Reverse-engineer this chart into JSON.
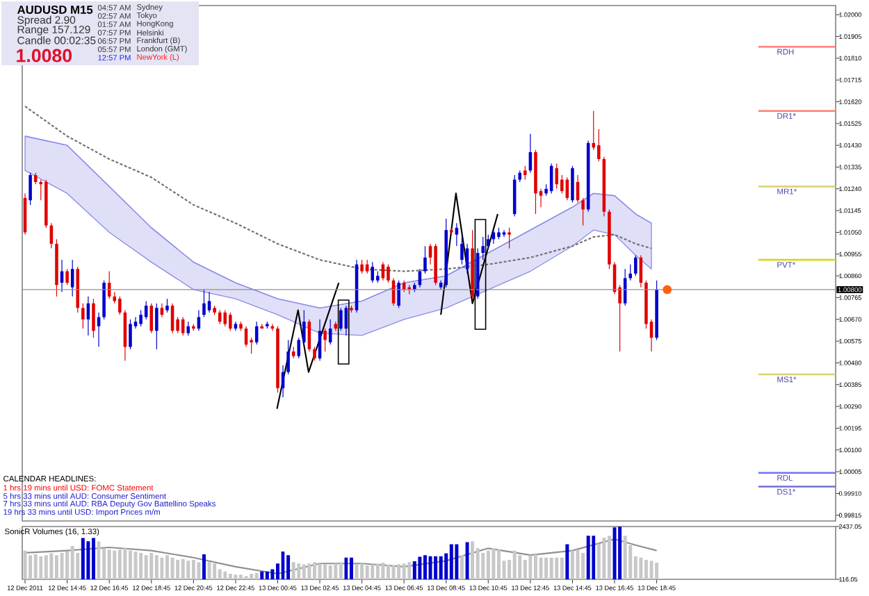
{
  "chart_data": [
    {
      "type": "candlestick",
      "title": "AUDUSD  M15",
      "x": [
        "2011-12-12T12:45",
        "2011-12-12T13:00",
        "2011-12-12T13:15",
        "2011-12-12T13:30",
        "2011-12-12T13:45",
        "2011-12-12T14:00",
        "2011-12-12T14:15",
        "2011-12-12T14:30",
        "2011-12-12T14:45",
        "2011-12-12T15:00",
        "2011-12-12T15:15",
        "2011-12-12T15:30",
        "2011-12-12T15:45",
        "2011-12-12T16:00",
        "2011-12-12T16:15",
        "2011-12-12T16:30",
        "2011-12-12T16:45",
        "2011-12-12T17:00",
        "2011-12-12T17:15",
        "2011-12-12T17:30",
        "2011-12-12T17:45",
        "2011-12-12T18:00",
        "2011-12-12T18:15",
        "2011-12-12T18:30",
        "2011-12-12T18:45",
        "2011-12-12T19:00",
        "2011-12-12T19:15",
        "2011-12-12T19:30",
        "2011-12-12T19:45",
        "2011-12-12T20:00",
        "2011-12-12T20:15",
        "2011-12-12T20:30",
        "2011-12-12T20:45",
        "2011-12-12T21:00",
        "2011-12-12T21:15",
        "2011-12-12T21:30",
        "2011-12-12T21:45",
        "2011-12-12T22:00",
        "2011-12-12T22:15",
        "2011-12-12T22:30",
        "2011-12-12T22:45",
        "2011-12-12T23:00",
        "2011-12-12T23:15",
        "2011-12-12T23:30",
        "2011-12-12T23:45",
        "2011-12-13T00:00",
        "2011-12-13T00:15",
        "2011-12-13T00:30",
        "2011-12-13T00:45",
        "2011-12-13T01:00",
        "2011-12-13T01:15",
        "2011-12-13T01:30",
        "2011-12-13T01:45",
        "2011-12-13T02:00",
        "2011-12-13T02:15",
        "2011-12-13T02:30",
        "2011-12-13T02:45",
        "2011-12-13T03:00",
        "2011-12-13T03:15",
        "2011-12-13T03:30",
        "2011-12-13T03:45",
        "2011-12-13T04:00",
        "2011-12-13T04:15",
        "2011-12-13T04:30",
        "2011-12-13T04:45",
        "2011-12-13T05:00",
        "2011-12-13T05:15",
        "2011-12-13T05:30",
        "2011-12-13T05:45",
        "2011-12-13T06:00",
        "2011-12-13T06:15",
        "2011-12-13T06:30",
        "2011-12-13T06:45",
        "2011-12-13T07:00",
        "2011-12-13T07:15",
        "2011-12-13T07:30",
        "2011-12-13T07:45",
        "2011-12-13T08:00",
        "2011-12-13T08:15",
        "2011-12-13T08:30",
        "2011-12-13T08:45",
        "2011-12-13T09:00",
        "2011-12-13T09:15",
        "2011-12-13T09:30",
        "2011-12-13T09:45",
        "2011-12-13T10:00",
        "2011-12-13T10:15",
        "2011-12-13T10:30",
        "2011-12-13T10:45",
        "2011-12-13T11:00",
        "2011-12-13T11:15",
        "2011-12-13T11:30",
        "2011-12-13T11:45",
        "2011-12-13T12:00",
        "2011-12-13T12:15",
        "2011-12-13T12:30",
        "2011-12-13T12:45",
        "2011-12-13T13:00",
        "2011-12-13T13:15",
        "2011-12-13T13:30",
        "2011-12-13T13:45",
        "2011-12-13T14:00",
        "2011-12-13T14:15",
        "2011-12-13T14:30",
        "2011-12-13T14:45",
        "2011-12-13T15:00",
        "2011-12-13T15:15",
        "2011-12-13T15:30",
        "2011-12-13T15:45",
        "2011-12-13T16:00",
        "2011-12-13T16:15",
        "2011-12-13T16:30",
        "2011-12-13T16:45",
        "2011-12-13T17:00",
        "2011-12-13T17:15",
        "2011-12-13T17:30",
        "2011-12-13T17:45",
        "2011-12-13T18:00",
        "2011-12-13T18:15",
        "2011-12-13T18:30",
        "2011-12-13T18:45"
      ],
      "ohlc": [
        [
          1.012,
          1.0122,
          1.0104,
          1.0105
        ],
        [
          1.0119,
          1.0131,
          1.0117,
          1.013
        ],
        [
          1.013,
          1.0131,
          1.0126,
          1.0127
        ],
        [
          1.0127,
          1.0128,
          1.0119,
          1.0126
        ],
        [
          1.0127,
          1.0128,
          1.0107,
          1.0108
        ],
        [
          1.0108,
          1.0109,
          1.0098,
          1.01
        ],
        [
          1.01,
          1.0102,
          1.0077,
          1.0082
        ],
        [
          1.0083,
          1.0093,
          1.0079,
          1.0088
        ],
        [
          1.0088,
          1.0089,
          1.0082,
          1.0083
        ],
        [
          1.0081,
          1.0093,
          1.0077,
          1.0089
        ],
        [
          1.0089,
          1.009,
          1.007,
          1.0072
        ],
        [
          1.0072,
          1.0074,
          1.0063,
          1.0067
        ],
        [
          1.0067,
          1.0077,
          1.006,
          1.0074
        ],
        [
          1.0074,
          1.0076,
          1.0059,
          1.0062
        ],
        [
          1.0064,
          1.007,
          1.0055,
          1.0068
        ],
        [
          1.0068,
          1.0084,
          1.0067,
          1.0083
        ],
        [
          1.0083,
          1.0088,
          1.0076,
          1.0077
        ],
        [
          1.0077,
          1.0079,
          1.0074,
          1.0075
        ],
        [
          1.0076,
          1.0077,
          1.0069,
          1.007
        ],
        [
          1.007,
          1.0071,
          1.0049,
          1.0055
        ],
        [
          1.0055,
          1.0067,
          1.0054,
          1.0065
        ],
        [
          1.0064,
          1.0068,
          1.0063,
          1.0066
        ],
        [
          1.0065,
          1.0071,
          1.0064,
          1.0069
        ],
        [
          1.0068,
          1.0075,
          1.0067,
          1.0073
        ],
        [
          1.0073,
          1.0074,
          1.0061,
          1.0062
        ],
        [
          1.0062,
          1.0074,
          1.0054,
          1.0072
        ],
        [
          1.0072,
          1.0074,
          1.0068,
          1.0069
        ],
        [
          1.0071,
          1.0076,
          1.007,
          1.0073
        ],
        [
          1.0073,
          1.0074,
          1.0061,
          1.0062
        ],
        [
          1.0067,
          1.0068,
          1.0061,
          1.0062
        ],
        [
          1.0067,
          1.0068,
          1.006,
          1.0061
        ],
        [
          1.0061,
          1.0066,
          1.006,
          1.0064
        ],
        [
          1.0064,
          1.0065,
          1.0062,
          1.0063
        ],
        [
          1.0063,
          1.0071,
          1.0062,
          1.0068
        ],
        [
          1.0069,
          1.008,
          1.0068,
          1.0074
        ],
        [
          1.0071,
          1.0079,
          1.007,
          1.0075
        ],
        [
          1.0072,
          1.0073,
          1.0069,
          1.007
        ],
        [
          1.007,
          1.0071,
          1.0065,
          1.0066
        ],
        [
          1.007,
          1.0071,
          1.0064,
          1.0065
        ],
        [
          1.0069,
          1.007,
          1.0062,
          1.0063
        ],
        [
          1.0063,
          1.0066,
          1.0062,
          1.0065
        ],
        [
          1.0065,
          1.0066,
          1.0062,
          1.0063
        ],
        [
          1.0063,
          1.0064,
          1.0055,
          1.0056
        ],
        [
          1.0058,
          1.0059,
          1.0052,
          1.0057
        ],
        [
          1.0057,
          1.0066,
          1.0056,
          1.0064
        ],
        [
          1.0064,
          1.0065,
          1.0063,
          1.0063
        ],
        [
          1.0064,
          1.0066,
          1.0063,
          1.0065
        ],
        [
          1.0064,
          1.0065,
          1.0062,
          1.0063
        ],
        [
          1.0063,
          1.0064,
          1.0035,
          1.0037
        ],
        [
          1.0037,
          1.0047,
          1.0033,
          1.0044
        ],
        [
          1.0044,
          1.0058,
          1.0043,
          1.0053
        ],
        [
          1.0053,
          1.0055,
          1.005,
          1.0051
        ],
        [
          1.0051,
          1.0059,
          1.005,
          1.0058
        ],
        [
          1.0057,
          1.0071,
          1.0056,
          1.0066
        ],
        [
          1.0066,
          1.0067,
          1.0053,
          1.0054
        ],
        [
          1.0054,
          1.0055,
          1.0049,
          1.005
        ],
        [
          1.005,
          1.0067,
          1.0049,
          1.0062
        ],
        [
          1.0062,
          1.0063,
          1.0053,
          1.0058
        ],
        [
          1.0057,
          1.0067,
          1.0056,
          1.0063
        ],
        [
          1.0065,
          1.0066,
          1.0062,
          1.0063
        ],
        [
          1.0063,
          1.0072,
          1.0062,
          1.0071
        ],
        [
          1.0063,
          1.0073,
          1.006,
          1.0072
        ],
        [
          1.0072,
          1.0073,
          1.007,
          1.0071
        ],
        [
          1.0071,
          1.0093,
          1.007,
          1.0091
        ],
        [
          1.0091,
          1.0093,
          1.0087,
          1.0088
        ],
        [
          1.0091,
          1.0093,
          1.0087,
          1.0088
        ],
        [
          1.0084,
          1.0092,
          1.0083,
          1.009
        ],
        [
          1.0084,
          1.0088,
          1.0083,
          1.0086
        ],
        [
          1.0091,
          1.0092,
          1.0084,
          1.0085
        ],
        [
          1.009,
          1.0091,
          1.0083,
          1.0084
        ],
        [
          1.0084,
          1.0085,
          1.0073,
          1.0074
        ],
        [
          1.0073,
          1.0084,
          1.0072,
          1.0083
        ],
        [
          1.0083,
          1.0084,
          1.0079,
          1.008
        ],
        [
          1.0081,
          1.0082,
          1.0078,
          1.008
        ],
        [
          1.008,
          1.0083,
          1.0079,
          1.0082
        ],
        [
          1.0082,
          1.0089,
          1.0081,
          1.0088
        ],
        [
          1.0088,
          1.0099,
          1.0087,
          1.0094
        ],
        [
          1.0099,
          1.01,
          1.0091,
          1.0094
        ],
        [
          1.0099,
          1.01,
          1.0082,
          1.0083
        ],
        [
          1.0081,
          1.0084,
          1.008,
          1.0083
        ],
        [
          1.0082,
          1.0111,
          1.0081,
          1.0106
        ],
        [
          1.0106,
          1.0107,
          1.0104,
          1.0105
        ],
        [
          1.0104,
          1.0109,
          1.0099,
          1.0107
        ],
        [
          1.0093,
          1.0104,
          1.0091,
          1.01
        ],
        [
          1.0089,
          1.01,
          1.0087,
          1.0098
        ],
        [
          1.0098,
          1.0106,
          1.0076,
          1.0077
        ],
        [
          1.0077,
          1.0098,
          1.0076,
          1.0096
        ],
        [
          1.0096,
          1.0103,
          1.0093,
          1.0099
        ],
        [
          1.0099,
          1.0104,
          1.0098,
          1.0102
        ],
        [
          1.0102,
          1.0106,
          1.01,
          1.0105
        ],
        [
          1.0103,
          1.0107,
          1.0102,
          1.0105
        ],
        [
          1.0104,
          1.0106,
          1.0103,
          1.0105
        ],
        [
          1.0105,
          1.0107,
          1.0098,
          1.0104
        ],
        [
          1.0113,
          1.013,
          1.0112,
          1.0128
        ],
        [
          1.0128,
          1.0132,
          1.0127,
          1.0131
        ],
        [
          1.0132,
          1.0134,
          1.0128,
          1.013
        ],
        [
          1.0132,
          1.0148,
          1.0131,
          1.014
        ],
        [
          1.014,
          1.0141,
          1.0113,
          1.0122
        ],
        [
          1.0123,
          1.0124,
          1.0116,
          1.0121
        ],
        [
          1.0122,
          1.0126,
          1.0121,
          1.0124
        ],
        [
          1.0123,
          1.0135,
          1.0122,
          1.0134
        ],
        [
          1.0133,
          1.0135,
          1.0124,
          1.0126
        ],
        [
          1.0128,
          1.013,
          1.0122,
          1.0123
        ],
        [
          1.0128,
          1.0129,
          1.0119,
          1.012
        ],
        [
          1.0119,
          1.0134,
          1.0118,
          1.0133
        ],
        [
          1.0127,
          1.013,
          1.0118,
          1.0119
        ],
        [
          1.0119,
          1.012,
          1.0108,
          1.0115
        ],
        [
          1.0115,
          1.0145,
          1.0114,
          1.0144
        ],
        [
          1.0144,
          1.0158,
          1.0141,
          1.0142
        ],
        [
          1.0143,
          1.015,
          1.0136,
          1.0137
        ],
        [
          1.0137,
          1.0138,
          1.0112,
          1.0114
        ],
        [
          1.0114,
          1.0115,
          1.0089,
          1.0091
        ],
        [
          1.0091,
          1.0092,
          1.0078,
          1.0079
        ],
        [
          1.0081,
          1.0082,
          1.0053,
          1.0074
        ],
        [
          1.0074,
          1.0089,
          1.0073,
          1.0085
        ],
        [
          1.0085,
          1.0091,
          1.0084,
          1.0087
        ],
        [
          1.0087,
          1.0095,
          1.0086,
          1.0094
        ],
        [
          1.0094,
          1.0095,
          1.0081,
          1.0083
        ],
        [
          1.0083,
          1.0084,
          1.0063,
          1.0065
        ],
        [
          1.0066,
          1.0067,
          1.0053,
          1.0059
        ],
        [
          1.0059,
          1.0084,
          1.0058,
          1.008
        ]
      ],
      "colors": [
        "#e00000",
        "#0000cc",
        "#e00000",
        "#e00000",
        "#e00000",
        "#e00000",
        "#e00000",
        "#0000cc",
        "#e00000",
        "#0000cc",
        "#e00000",
        "#e00000",
        "#0000cc",
        "#e00000",
        "#0000cc",
        "#0000cc",
        "#e00000",
        "#e00000",
        "#e00000",
        "#e00000",
        "#0000cc",
        "#0000cc",
        "#0000cc",
        "#0000cc",
        "#e00000",
        "#0000cc",
        "#e00000",
        "#0000cc",
        "#e00000",
        "#e00000",
        "#e00000",
        "#0000cc",
        "#e00000",
        "#0000cc",
        "#0000cc",
        "#0000cc",
        "#e00000",
        "#e00000",
        "#e00000",
        "#e00000",
        "#0000cc",
        "#e00000",
        "#e00000",
        "#e00000",
        "#0000cc",
        "#e00000",
        "#0000cc",
        "#e00000",
        "#e00000",
        "#0000cc",
        "#0000cc",
        "#e00000",
        "#0000cc",
        "#0000cc",
        "#e00000",
        "#e00000",
        "#0000cc",
        "#e00000",
        "#0000cc",
        "#e00000",
        "#0000cc",
        "#0000cc",
        "#e00000",
        "#0000cc",
        "#e00000",
        "#e00000",
        "#0000cc",
        "#0000cc",
        "#e00000",
        "#e00000",
        "#e00000",
        "#0000cc",
        "#e00000",
        "#e00000",
        "#0000cc",
        "#0000cc",
        "#0000cc",
        "#e00000",
        "#e00000",
        "#0000cc",
        "#0000cc",
        "#e00000",
        "#0000cc",
        "#0000cc",
        "#0000cc",
        "#e00000",
        "#0000cc",
        "#0000cc",
        "#0000cc",
        "#0000cc",
        "#0000cc",
        "#0000cc",
        "#e00000",
        "#0000cc",
        "#0000cc",
        "#e00000",
        "#0000cc",
        "#e00000",
        "#e00000",
        "#0000cc",
        "#0000cc",
        "#e00000",
        "#e00000",
        "#e00000",
        "#0000cc",
        "#e00000",
        "#e00000",
        "#0000cc",
        "#e00000",
        "#e00000",
        "#e00000",
        "#e00000",
        "#e00000",
        "#e00000",
        "#0000cc",
        "#0000cc",
        "#0000cc",
        "#e00000",
        "#e00000",
        "#e00000",
        "#0000cc"
      ],
      "xlim": [
        "2011-12-12T12:37",
        "2011-12-14T03:15"
      ],
      "ylim": [
        0.9979,
        1.0204
      ],
      "yticks": [
        {
          "value": 1.02,
          "label": "1.02000"
        },
        {
          "value": 1.01905,
          "label": "1.01905"
        },
        {
          "value": 1.0181,
          "label": "1.01810"
        },
        {
          "value": 1.01715,
          "label": "1.01715"
        },
        {
          "value": 1.0162,
          "label": "1.01620"
        },
        {
          "value": 1.01525,
          "label": "1.01525"
        },
        {
          "value": 1.0143,
          "label": "1.01430"
        },
        {
          "value": 1.01335,
          "label": "1.01335"
        },
        {
          "value": 1.0124,
          "label": "1.01240"
        },
        {
          "value": 1.01145,
          "label": "1.01145"
        },
        {
          "value": 1.0105,
          "label": "1.01050"
        },
        {
          "value": 1.00955,
          "label": "1.00955"
        },
        {
          "value": 1.0086,
          "label": "1.00860"
        },
        {
          "value": 1.00765,
          "label": "1.00765"
        },
        {
          "value": 1.0067,
          "label": "1.00670"
        },
        {
          "value": 1.00575,
          "label": "1.00575"
        },
        {
          "value": 1.0048,
          "label": "1.00480"
        },
        {
          "value": 1.00385,
          "label": "1.00385"
        },
        {
          "value": 1.0029,
          "label": "1.00290"
        },
        {
          "value": 1.00195,
          "label": "1.00195"
        },
        {
          "value": 1.001,
          "label": "1.00100"
        },
        {
          "value": 1.00005,
          "label": "1.00005"
        },
        {
          "value": 0.9991,
          "label": "0.99910"
        },
        {
          "value": 0.99815,
          "label": "0.99815"
        }
      ],
      "tick_labels": "y",
      "series": [
        {
          "type": "line",
          "color": "#8c8ce6",
          "x": [
            "2011-12-12T12:45",
            "2011-12-12T14:45",
            "2011-12-12T16:45",
            "2011-12-12T18:45",
            "2011-12-12T20:45",
            "2011-12-12T22:45",
            "2011-12-13T00:45",
            "2011-12-13T02:45",
            "2011-12-13T04:45",
            "2011-12-13T06:45",
            "2011-12-13T08:45",
            "2011-12-13T12:45",
            "2011-12-13T14:45",
            "2011-12-13T15:45",
            "2011-12-13T16:45",
            "2011-12-13T17:45",
            "2011-12-13T18:30"
          ],
          "values": [
            1.0147,
            1.0143,
            1.0125,
            1.0107,
            1.0092,
            1.0083,
            1.0076,
            1.0072,
            1.0075,
            1.0083,
            1.0086,
            1.0106,
            1.0116,
            1.0122,
            1.0121,
            1.0113,
            1.0109
          ],
          "upper": [
            1.0147,
            1.0143,
            1.0125,
            1.0107,
            1.0092,
            1.0083,
            1.0076,
            1.0072,
            1.0075,
            1.0083,
            1.0086,
            1.0106,
            1.0116,
            1.0122,
            1.0121,
            1.0113,
            1.0109
          ],
          "lower": [
            1.0132,
            1.0122,
            1.0105,
            1.0092,
            1.008,
            1.0076,
            1.0069,
            1.0061,
            1.006,
            1.0067,
            1.0072,
            1.0088,
            1.0099,
            1.0106,
            1.0104,
            1.0095,
            1.0089
          ]
        },
        {
          "type": "line",
          "color": "#707070",
          "line_style": "dashed",
          "x": [
            "2011-12-12T12:45",
            "2011-12-12T14:45",
            "2011-12-12T16:45",
            "2011-12-12T18:45",
            "2011-12-12T20:45",
            "2011-12-12T22:45",
            "2011-12-13T00:45",
            "2011-12-13T02:45",
            "2011-12-13T04:45",
            "2011-12-13T06:45",
            "2011-12-13T08:45",
            "2011-12-13T10:45",
            "2011-12-13T12:45",
            "2011-12-13T14:45",
            "2011-12-13T15:45",
            "2011-12-13T16:45",
            "2011-12-13T17:45",
            "2011-12-13T18:30"
          ],
          "values": [
            1.016,
            1.0147,
            1.0137,
            1.0129,
            1.0117,
            1.0109,
            1.01,
            1.0093,
            1.0089,
            1.0088,
            1.0089,
            1.0091,
            1.0094,
            1.0099,
            1.0103,
            1.0104,
            1.01,
            1.0098
          ]
        },
        {
          "type": "line",
          "color": "#000000",
          "x": [
            "2011-12-13T00:43",
            "2011-12-13T01:43",
            "2011-12-13T02:13",
            "2011-12-13T03:39"
          ],
          "values": [
            1.0028,
            1.0071,
            1.0044,
            1.0083
          ]
        },
        {
          "type": "line",
          "color": "#000000",
          "x": [
            "2011-12-13T08:30",
            "2011-12-13T09:13",
            "2011-12-13T10:00",
            "2011-12-13T11:12"
          ],
          "values": [
            1.0069,
            1.0122,
            1.0074,
            1.0113
          ]
        },
        {
          "type": "scatter",
          "color": "#ff6010",
          "marker": "circle",
          "x": [
            "2011-12-13T19:15"
          ],
          "values": [
            1.008
          ]
        }
      ],
      "ref_lines": [
        {
          "axis": "y",
          "value": 1.0186,
          "label": "RDH",
          "color": "#ff7070"
        },
        {
          "axis": "y",
          "value": 1.0158,
          "label": "DR1*",
          "color": "#ff8070"
        },
        {
          "axis": "y",
          "value": 1.0125,
          "label": "MR1*",
          "color": "#d8d070"
        },
        {
          "axis": "y",
          "value": 1.0093,
          "label": "PVT*",
          "color": "#d8d800"
        },
        {
          "axis": "y",
          "value": 1.0043,
          "label": "MS1*",
          "color": "#d8d070"
        },
        {
          "axis": "y",
          "value": 1.0,
          "label": "RDL",
          "color": "#7070ff"
        },
        {
          "axis": "y",
          "value": 0.9994,
          "label": "DS1*",
          "color": "#7070d0"
        },
        {
          "axis": "y",
          "value": 1.008,
          "label": "1.00800",
          "color": "#909090"
        }
      ],
      "annotations": [
        "Spread  2.90",
        "Range  157.129",
        "Candle  00:02:35",
        "1.0080",
        "04:57 AM",
        "02:57 AM",
        "01:57 AM",
        "07:57 PM",
        "06:57 PM",
        "05:57 PM",
        "12:57 PM",
        "Sydney",
        "Tokyo",
        "HongKong",
        "Helsinki",
        "Frankfurt (B)",
        "London (GMT)",
        "NewYork (L)",
        "CALENDAR HEADLINES:",
        "1 hrs 19 mins until USD: FOMC Statement",
        "5 hrs 33 mins until AUD: Consumer Sentiment",
        "7 hrs 33 mins until AUD: RBA Deputy Gov Battellino Speaks",
        "19 hrs 33 mins until USD: Import Prices m/m"
      ]
    },
    {
      "type": "bar",
      "title": "SonicR Volumes (16, 1.33)",
      "x": [
        "2011-12-12T12:45",
        "2011-12-12T13:00",
        "2011-12-12T13:15",
        "2011-12-12T13:30",
        "2011-12-12T13:45",
        "2011-12-12T14:00",
        "2011-12-12T14:15",
        "2011-12-12T14:30",
        "2011-12-12T14:45",
        "2011-12-12T15:00",
        "2011-12-12T15:15",
        "2011-12-12T15:30",
        "2011-12-12T15:45",
        "2011-12-12T16:00",
        "2011-12-12T16:15",
        "2011-12-12T16:30",
        "2011-12-12T16:45",
        "2011-12-12T17:00",
        "2011-12-12T17:15",
        "2011-12-12T17:30",
        "2011-12-12T17:45",
        "2011-12-12T18:00",
        "2011-12-12T18:15",
        "2011-12-12T18:30",
        "2011-12-12T18:45",
        "2011-12-12T19:00",
        "2011-12-12T19:15",
        "2011-12-12T19:30",
        "2011-12-12T19:45",
        "2011-12-12T20:00",
        "2011-12-12T20:15",
        "2011-12-12T20:30",
        "2011-12-12T20:45",
        "2011-12-12T21:00",
        "2011-12-12T21:15",
        "2011-12-12T21:30",
        "2011-12-12T21:45",
        "2011-12-12T22:00",
        "2011-12-12T22:15",
        "2011-12-12T22:30",
        "2011-12-12T22:45",
        "2011-12-12T23:00",
        "2011-12-12T23:15",
        "2011-12-12T23:30",
        "2011-12-12T23:45",
        "2011-12-13T00:00",
        "2011-12-13T00:15",
        "2011-12-13T00:30",
        "2011-12-13T00:45",
        "2011-12-13T01:00",
        "2011-12-13T01:15",
        "2011-12-13T01:30",
        "2011-12-13T01:45",
        "2011-12-13T02:00",
        "2011-12-13T02:15",
        "2011-12-13T02:30",
        "2011-12-13T02:45",
        "2011-12-13T03:00",
        "2011-12-13T03:15",
        "2011-12-13T03:30",
        "2011-12-13T03:45",
        "2011-12-13T04:00",
        "2011-12-13T04:15",
        "2011-12-13T04:30",
        "2011-12-13T04:45",
        "2011-12-13T05:00",
        "2011-12-13T05:15",
        "2011-12-13T05:30",
        "2011-12-13T05:45",
        "2011-12-13T06:00",
        "2011-12-13T06:15",
        "2011-12-13T06:30",
        "2011-12-13T06:45",
        "2011-12-13T07:00",
        "2011-12-13T07:15",
        "2011-12-13T07:30",
        "2011-12-13T07:45",
        "2011-12-13T08:00",
        "2011-12-13T08:15",
        "2011-12-13T08:30",
        "2011-12-13T08:45",
        "2011-12-13T09:00",
        "2011-12-13T09:15",
        "2011-12-13T09:30",
        "2011-12-13T09:45",
        "2011-12-13T10:00",
        "2011-12-13T10:15",
        "2011-12-13T10:30",
        "2011-12-13T10:45",
        "2011-12-13T11:00",
        "2011-12-13T11:15",
        "2011-12-13T11:30",
        "2011-12-13T11:45",
        "2011-12-13T12:00",
        "2011-12-13T12:15",
        "2011-12-13T12:30",
        "2011-12-13T12:45",
        "2011-12-13T13:00",
        "2011-12-13T13:15",
        "2011-12-13T13:30",
        "2011-12-13T13:45",
        "2011-12-13T14:00",
        "2011-12-13T14:15",
        "2011-12-13T14:30",
        "2011-12-13T14:45",
        "2011-12-13T15:00",
        "2011-12-13T15:15",
        "2011-12-13T15:30",
        "2011-12-13T15:45",
        "2011-12-13T16:00",
        "2011-12-13T16:15",
        "2011-12-13T16:30",
        "2011-12-13T16:45",
        "2011-12-13T17:00",
        "2011-12-13T17:15",
        "2011-12-13T17:30",
        "2011-12-13T17:45",
        "2011-12-13T18:00",
        "2011-12-13T18:15",
        "2011-12-13T18:30",
        "2011-12-13T18:45"
      ],
      "values": [
        1380,
        1180,
        1220,
        1130,
        1180,
        1260,
        1180,
        1280,
        1340,
        1580,
        1280,
        1930,
        1790,
        1930,
        1790,
        1480,
        1420,
        1380,
        1420,
        1480,
        1380,
        1340,
        1280,
        1180,
        1280,
        1180,
        1070,
        1180,
        1070,
        970,
        1010,
        930,
        970,
        870,
        1220,
        870,
        810,
        560,
        460,
        360,
        320,
        320,
        260,
        360,
        400,
        460,
        460,
        560,
        810,
        1340,
        1180,
        870,
        810,
        770,
        810,
        870,
        810,
        770,
        730,
        810,
        870,
        1070,
        1070,
        770,
        810,
        730,
        770,
        810,
        850,
        770,
        730,
        770,
        810,
        870,
        910,
        1110,
        1180,
        1130,
        1130,
        1130,
        1260,
        1660,
        1660,
        1180,
        1750,
        1790,
        1480,
        1280,
        1380,
        1480,
        1420,
        930,
        970,
        1380,
        1180,
        970,
        1180,
        1220,
        1070,
        1070,
        1070,
        1070,
        1070,
        1660,
        1380,
        1420,
        1280,
        2030,
        2030,
        1680,
        1950,
        2030,
        2400,
        2430,
        2030,
        1620,
        1130,
        1070,
        970,
        930,
        850
      ],
      "colors": [
        "#c8c8c8",
        "#c8c8c8",
        "#c8c8c8",
        "#c8c8c8",
        "#c8c8c8",
        "#c8c8c8",
        "#c8c8c8",
        "#c8c8c8",
        "#c8c8c8",
        "#c8c8c8",
        "#c8c8c8",
        "#0000cc",
        "#0000cc",
        "#0000cc",
        "#c8c8c8",
        "#c8c8c8",
        "#c8c8c8",
        "#c8c8c8",
        "#c8c8c8",
        "#c8c8c8",
        "#c8c8c8",
        "#c8c8c8",
        "#c8c8c8",
        "#c8c8c8",
        "#c8c8c8",
        "#c8c8c8",
        "#c8c8c8",
        "#c8c8c8",
        "#c8c8c8",
        "#c8c8c8",
        "#c8c8c8",
        "#c8c8c8",
        "#c8c8c8",
        "#c8c8c8",
        "#0000cc",
        "#c8c8c8",
        "#c8c8c8",
        "#c8c8c8",
        "#c8c8c8",
        "#c8c8c8",
        "#c8c8c8",
        "#c8c8c8",
        "#c8c8c8",
        "#c8c8c8",
        "#c8c8c8",
        "#0000cc",
        "#0000cc",
        "#0000cc",
        "#0000cc",
        "#0000cc",
        "#0000cc",
        "#c8c8c8",
        "#c8c8c8",
        "#c8c8c8",
        "#c8c8c8",
        "#c8c8c8",
        "#c8c8c8",
        "#c8c8c8",
        "#c8c8c8",
        "#c8c8c8",
        "#c8c8c8",
        "#0000cc",
        "#0000cc",
        "#c8c8c8",
        "#c8c8c8",
        "#c8c8c8",
        "#c8c8c8",
        "#c8c8c8",
        "#c8c8c8",
        "#c8c8c8",
        "#c8c8c8",
        "#c8c8c8",
        "#c8c8c8",
        "#c8c8c8",
        "#0000cc",
        "#0000cc",
        "#0000cc",
        "#0000cc",
        "#0000cc",
        "#0000cc",
        "#0000cc",
        "#0000cc",
        "#0000cc",
        "#c8c8c8",
        "#0000cc",
        "#c8c8c8",
        "#c8c8c8",
        "#c8c8c8",
        "#c8c8c8",
        "#c8c8c8",
        "#c8c8c8",
        "#c8c8c8",
        "#c8c8c8",
        "#c8c8c8",
        "#c8c8c8",
        "#c8c8c8",
        "#c8c8c8",
        "#c8c8c8",
        "#c8c8c8",
        "#c8c8c8",
        "#c8c8c8",
        "#c8c8c8",
        "#c8c8c8",
        "#0000cc",
        "#c8c8c8",
        "#c8c8c8",
        "#c8c8c8",
        "#0000cc",
        "#0000cc",
        "#c8c8c8",
        "#c8c8c8",
        "#c8c8c8",
        "#0000cc",
        "#0000cc",
        "#c8c8c8",
        "#c8c8c8",
        "#c8c8c8",
        "#c8c8c8",
        "#c8c8c8",
        "#c8c8c8",
        "#c8c8c8"
      ],
      "xlim": [
        "2011-12-12T12:37",
        "2011-12-14T03:15"
      ],
      "ylim": [
        116.05,
        2437.05
      ],
      "yticks": [
        116.05,
        2437.05
      ],
      "xticks": [
        {
          "value": "2011-12-12T12:45",
          "label": "12 Dec 2011"
        },
        {
          "value": "2011-12-12T14:45",
          "label": "12 Dec 14:45"
        },
        {
          "value": "2011-12-12T16:45",
          "label": "12 Dec 16:45"
        },
        {
          "value": "2011-12-12T18:45",
          "label": "12 Dec 18:45"
        },
        {
          "value": "2011-12-12T20:45",
          "label": "12 Dec 20:45"
        },
        {
          "value": "2011-12-12T22:45",
          "label": "12 Dec 22:45"
        },
        {
          "value": "2011-12-13T00:45",
          "label": "13 Dec 00:45"
        },
        {
          "value": "2011-12-13T02:45",
          "label": "13 Dec 02:45"
        },
        {
          "value": "2011-12-13T04:45",
          "label": "13 Dec 04:45"
        },
        {
          "value": "2011-12-13T06:45",
          "label": "13 Dec 06:45"
        },
        {
          "value": "2011-12-13T08:45",
          "label": "13 Dec 08:45"
        },
        {
          "value": "2011-12-13T10:45",
          "label": "13 Dec 10:45"
        },
        {
          "value": "2011-12-13T12:45",
          "label": "13 Dec 12:45"
        },
        {
          "value": "2011-12-13T14:45",
          "label": "13 Dec 14:45"
        },
        {
          "value": "2011-12-13T16:45",
          "label": "13 Dec 16:45"
        },
        {
          "value": "2011-12-13T18:45",
          "label": "13 Dec 18:45"
        }
      ],
      "series": [
        {
          "type": "line",
          "color": "#909090",
          "x": [
            "2011-12-12T12:45",
            "2011-12-12T14:45",
            "2011-12-12T16:45",
            "2011-12-12T18:45",
            "2011-12-12T20:45",
            "2011-12-12T22:45",
            "2011-12-13T00:45",
            "2011-12-13T02:45",
            "2011-12-13T04:45",
            "2011-12-13T06:45",
            "2011-12-13T08:45",
            "2011-12-13T10:45",
            "2011-12-13T12:45",
            "2011-12-13T14:45",
            "2011-12-13T16:45",
            "2011-12-13T17:45",
            "2011-12-13T18:45"
          ],
          "values": [
            1280,
            1380,
            1520,
            1380,
            1070,
            670,
            360,
            810,
            810,
            670,
            930,
            1480,
            1180,
            1380,
            1890,
            1620,
            1380
          ]
        }
      ]
    }
  ]
}
